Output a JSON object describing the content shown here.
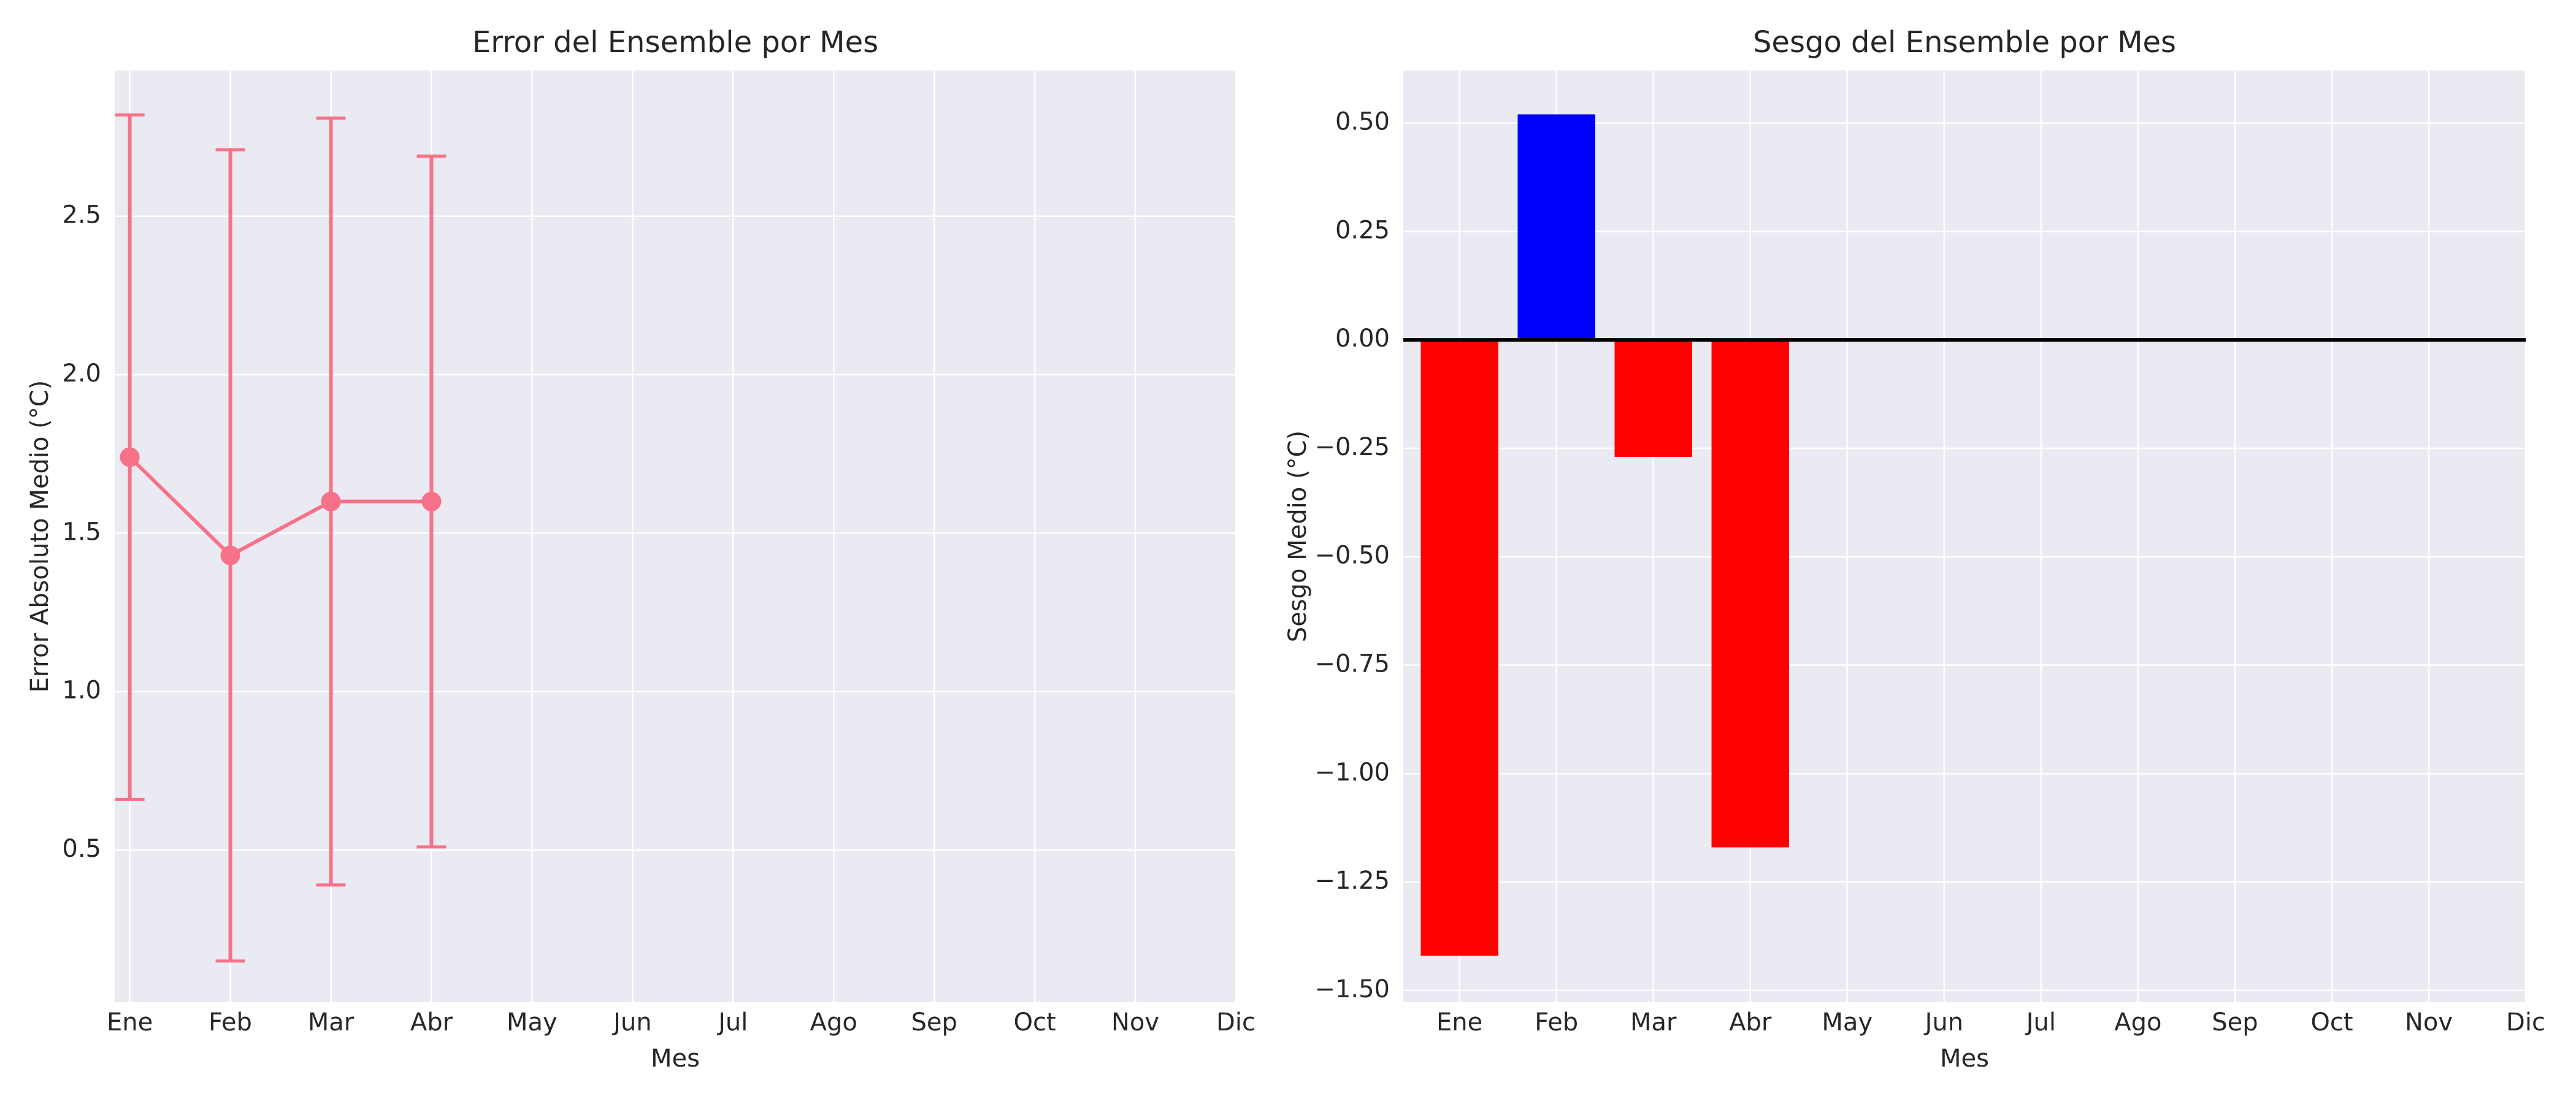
{
  "chart_data": [
    {
      "type": "line",
      "title": "Error del Ensemble por Mes",
      "xlabel": "Mes",
      "ylabel": "Error Absoluto Medio (°C)",
      "categories": [
        "Ene",
        "Feb",
        "Mar",
        "Abr",
        "May",
        "Jun",
        "Jul",
        "Ago",
        "Sep",
        "Oct",
        "Nov",
        "Dic"
      ],
      "values": [
        1.74,
        1.43,
        1.6,
        1.6,
        null,
        null,
        null,
        null,
        null,
        null,
        null,
        null
      ],
      "errors": [
        1.08,
        1.28,
        1.21,
        1.09,
        null,
        null,
        null,
        null,
        null,
        null,
        null,
        null
      ],
      "color": "#f77189",
      "xlim": [
        -0.15,
        11
      ],
      "ylim": [
        0.02,
        2.96
      ],
      "yticks": [
        0.5,
        {
          "value": 1.0,
          "label": "1.0"
        },
        1.5,
        {
          "value": 2.0,
          "label": "2.0"
        },
        2.5
      ],
      "grid": true
    },
    {
      "type": "bar",
      "title": "Sesgo del Ensemble por Mes",
      "xlabel": "Mes",
      "ylabel": "Sesgo Medio (°C)",
      "categories": [
        "Ene",
        "Feb",
        "Mar",
        "Abr",
        "May",
        "Jun",
        "Jul",
        "Ago",
        "Sep",
        "Oct",
        "Nov",
        "Dic"
      ],
      "values": [
        -1.42,
        0.52,
        -0.27,
        -1.17,
        null,
        null,
        null,
        null,
        null,
        null,
        null,
        null
      ],
      "colors": [
        "#ff0000",
        "#0000ff",
        "#ff0000",
        "#ff0000",
        null,
        null,
        null,
        null,
        null,
        null,
        null,
        null
      ],
      "reference_line": 0,
      "xlim": [
        -0.58,
        11
      ],
      "ylim": [
        -1.527,
        0.621
      ],
      "yticks": [
        {
          "value": -1.5,
          "label": "−1.50"
        },
        {
          "value": -1.25,
          "label": "−1.25"
        },
        {
          "value": -1.0,
          "label": "−1.00"
        },
        {
          "value": -0.75,
          "label": "−0.75"
        },
        {
          "value": -0.5,
          "label": "−0.50"
        },
        {
          "value": -0.25,
          "label": "−0.25"
        },
        {
          "value": 0,
          "label": "0.00"
        },
        {
          "value": 0.25,
          "label": "0.25"
        },
        {
          "value": 0.5,
          "label": "0.50"
        }
      ],
      "grid": true
    }
  ]
}
